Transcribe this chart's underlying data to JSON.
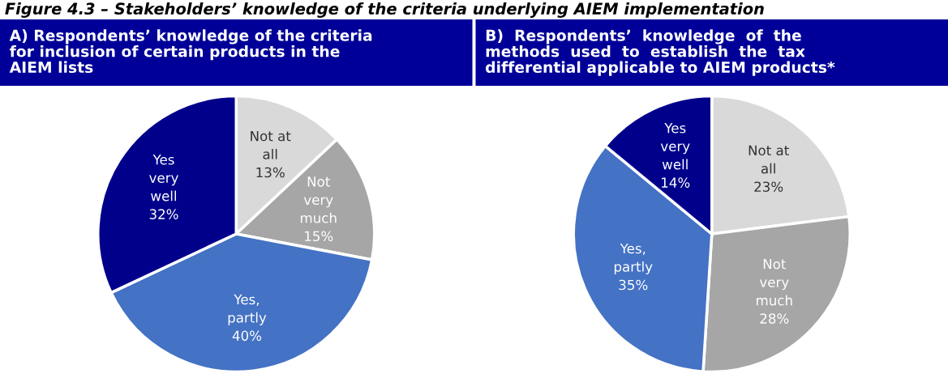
{
  "chart_data": [
    {
      "type": "pie",
      "title": "A) Respondents’ knowledge of the criteria\nfor inclusion of certain products in the\nAIEM lists",
      "annotations": [
        "Figure 4.3 – Stakeholders’ knowledge of the criteria underlying AIEM implementation"
      ],
      "categories": [
        "Not at\nall",
        "Not\nvery\nmuch",
        "Yes,\npartly",
        "Yes\nvery\nwell"
      ],
      "values": [
        13,
        15,
        40,
        32
      ],
      "value_labels": [
        "13%",
        "15%",
        "40%",
        "32%"
      ],
      "colors": [
        "#d9d9d9",
        "#a6a6a6",
        "#4472c4",
        "#00008b"
      ]
    },
    {
      "type": "pie",
      "title": "B)  Respondents’  knowledge  of  the\nmethods  used  to  establish  the  tax\ndifferential applicable to AIEM products*",
      "categories": [
        "Not at\nall",
        "Not\nvery\nmuch",
        "Yes,\npartly",
        "Yes\nvery\nwell"
      ],
      "values": [
        23,
        28,
        35,
        14
      ],
      "value_labels": [
        "23%",
        "28%",
        "35%",
        "14%"
      ],
      "colors": [
        "#d9d9d9",
        "#a6a6a6",
        "#4472c4",
        "#00008b"
      ]
    }
  ]
}
